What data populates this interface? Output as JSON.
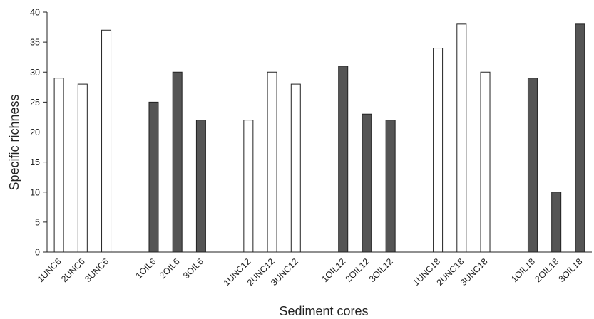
{
  "chart_data": {
    "type": "bar",
    "title": "",
    "xlabel": "Sediment cores",
    "ylabel": "Specific richness",
    "ylim": [
      0,
      40
    ],
    "yticks": [
      0,
      5,
      10,
      15,
      20,
      25,
      30,
      35,
      40
    ],
    "grid": false,
    "legend": "none",
    "colors": {
      "unc": "#ffffff",
      "oil": "#555555",
      "outline": "#222222"
    },
    "bars": [
      {
        "label": "1UNC6",
        "value": 29,
        "group": "unc"
      },
      {
        "label": "2UNC6",
        "value": 28,
        "group": "unc"
      },
      {
        "label": "3UNC6",
        "value": 37,
        "group": "unc"
      },
      {
        "label": "1OIL6",
        "value": 25,
        "group": "oil"
      },
      {
        "label": "2OIL6",
        "value": 30,
        "group": "oil"
      },
      {
        "label": "3OIL6",
        "value": 22,
        "group": "oil"
      },
      {
        "label": "1UNC12",
        "value": 22,
        "group": "unc"
      },
      {
        "label": "2UNC12",
        "value": 30,
        "group": "unc"
      },
      {
        "label": "3UNC12",
        "value": 28,
        "group": "unc"
      },
      {
        "label": "1OIL12",
        "value": 31,
        "group": "oil"
      },
      {
        "label": "2OIL12",
        "value": 23,
        "group": "oil"
      },
      {
        "label": "3OIL12",
        "value": 22,
        "group": "oil"
      },
      {
        "label": "1UNC18",
        "value": 34,
        "group": "unc"
      },
      {
        "label": "2UNC18",
        "value": 38,
        "group": "unc"
      },
      {
        "label": "3UNC18",
        "value": 30,
        "group": "unc"
      },
      {
        "label": "1OIL18",
        "value": 29,
        "group": "oil"
      },
      {
        "label": "2OIL18",
        "value": 10,
        "group": "oil"
      },
      {
        "label": "3OIL18",
        "value": 38,
        "group": "oil"
      }
    ]
  }
}
